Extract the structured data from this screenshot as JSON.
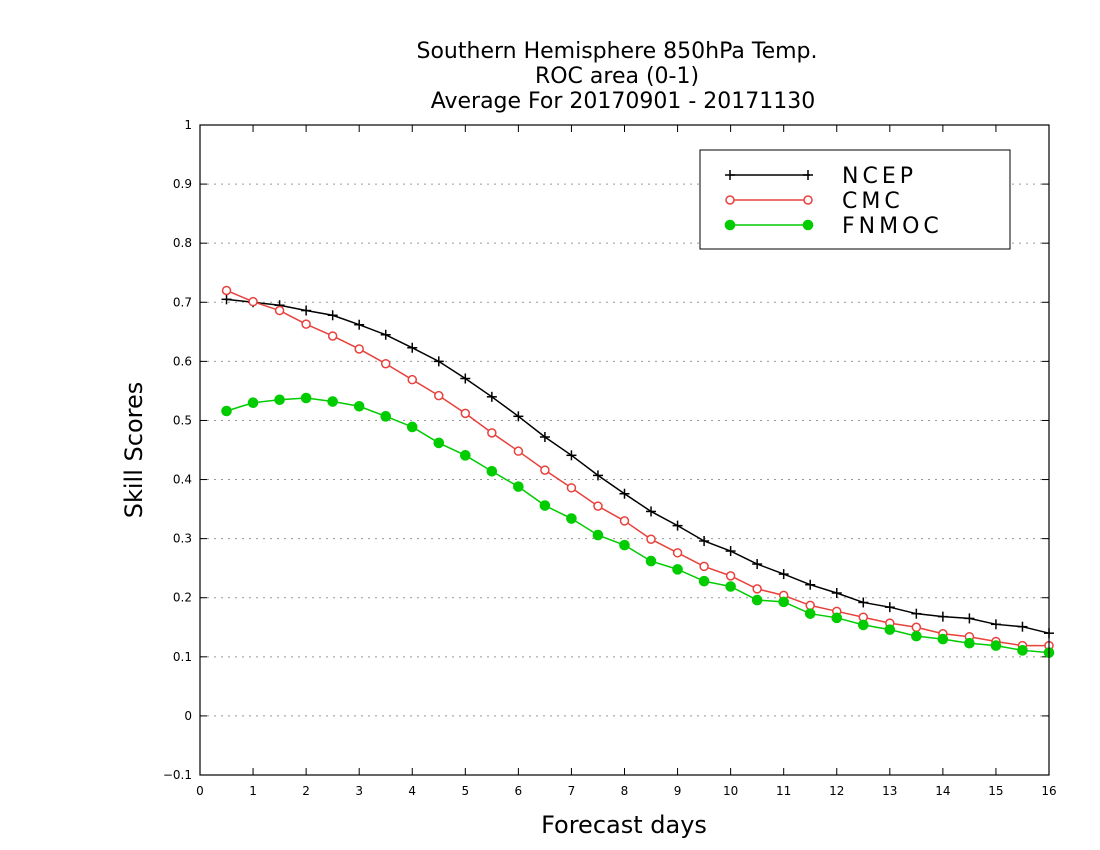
{
  "chart_data": {
    "type": "line",
    "title_lines": [
      "Southern Hemisphere 850hPa Temp.",
      "ROC area (0-1)",
      "Average For 20170901 - 20171130"
    ],
    "xlabel": "Forecast days",
    "ylabel": "Skill Scores",
    "xlim": [
      0,
      16
    ],
    "ylim": [
      -0.1,
      1
    ],
    "x_ticks": [
      "0",
      "1",
      "2",
      "3",
      "4",
      "5",
      "6",
      "7",
      "8",
      "9",
      "10",
      "11",
      "12",
      "13",
      "14",
      "15",
      "16"
    ],
    "y_ticks": [
      "−0.1",
      "0",
      "0.1",
      "0.2",
      "0.3",
      "0.4",
      "0.5",
      "0.6",
      "0.7",
      "0.8",
      "0.9",
      "1"
    ],
    "grid": true,
    "legend_position": "top-right",
    "x": [
      0.5,
      1,
      1.5,
      2,
      2.5,
      3,
      3.5,
      4,
      4.5,
      5,
      5.5,
      6,
      6.5,
      7,
      7.5,
      8,
      8.5,
      9,
      9.5,
      10,
      10.5,
      11,
      11.5,
      12,
      12.5,
      13,
      13.5,
      14,
      14.5,
      15,
      15.5,
      16
    ],
    "series": [
      {
        "name": "NCEP",
        "color": "#000000",
        "marker": "plus",
        "values": [
          0.705,
          0.7,
          0.695,
          0.686,
          0.678,
          0.662,
          0.645,
          0.623,
          0.6,
          0.571,
          0.54,
          0.507,
          0.472,
          0.441,
          0.407,
          0.376,
          0.346,
          0.322,
          0.296,
          0.279,
          0.257,
          0.24,
          0.222,
          0.208,
          0.192,
          0.184,
          0.173,
          0.168,
          0.165,
          0.155,
          0.151,
          0.14
        ]
      },
      {
        "name": "CMC",
        "color": "#e8413c",
        "marker": "open-circle",
        "values": [
          0.72,
          0.701,
          0.686,
          0.663,
          0.643,
          0.621,
          0.596,
          0.569,
          0.542,
          0.512,
          0.479,
          0.448,
          0.416,
          0.386,
          0.355,
          0.33,
          0.299,
          0.276,
          0.253,
          0.237,
          0.215,
          0.204,
          0.187,
          0.177,
          0.167,
          0.157,
          0.15,
          0.139,
          0.134,
          0.126,
          0.119,
          0.119
        ]
      },
      {
        "name": "FNMOC",
        "color": "#00cc00",
        "marker": "filled-circle",
        "values": [
          0.516,
          0.53,
          0.535,
          0.538,
          0.532,
          0.524,
          0.507,
          0.489,
          0.462,
          0.441,
          0.414,
          0.388,
          0.356,
          0.334,
          0.306,
          0.289,
          0.262,
          0.248,
          0.228,
          0.219,
          0.196,
          0.193,
          0.173,
          0.166,
          0.154,
          0.146,
          0.135,
          0.13,
          0.123,
          0.119,
          0.111,
          0.107
        ]
      }
    ]
  }
}
